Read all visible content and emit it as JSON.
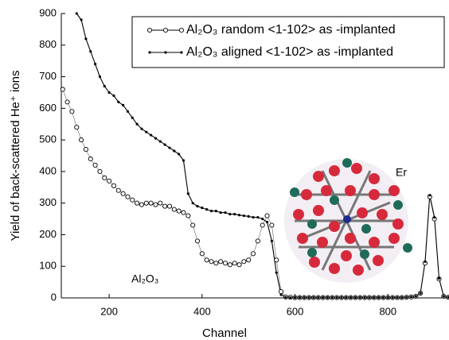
{
  "chart_data": {
    "type": "line",
    "x_label": "Channel",
    "y_label": "Yield of back-scattered He⁺ ions",
    "annotations": [
      "Al₂O₃",
      "Er"
    ],
    "x": [
      100,
      110,
      120,
      130,
      140,
      150,
      160,
      170,
      180,
      190,
      200,
      210,
      220,
      230,
      240,
      250,
      260,
      270,
      280,
      290,
      300,
      310,
      320,
      330,
      340,
      350,
      360,
      370,
      380,
      390,
      400,
      410,
      420,
      430,
      440,
      450,
      460,
      470,
      480,
      490,
      500,
      510,
      520,
      530,
      540,
      550,
      560,
      570,
      580,
      590,
      600,
      610,
      620,
      630,
      640,
      650,
      660,
      670,
      680,
      690,
      700,
      710,
      720,
      730,
      740,
      750,
      760,
      770,
      780,
      790,
      800,
      810,
      820,
      830,
      840,
      850,
      860,
      870,
      880,
      890,
      900,
      910,
      920,
      930
    ],
    "series": [
      {
        "name": "Al₂O₃ random <1-102> as -implanted",
        "color": "#000000",
        "marker": "open-circle",
        "values": [
          660,
          620,
          590,
          540,
          500,
          470,
          440,
          420,
          400,
          380,
          370,
          355,
          340,
          330,
          320,
          310,
          300,
          295,
          300,
          300,
          295,
          300,
          290,
          290,
          280,
          275,
          270,
          260,
          230,
          180,
          140,
          120,
          115,
          110,
          115,
          110,
          105,
          110,
          105,
          115,
          120,
          140,
          180,
          230,
          260,
          230,
          120,
          20,
          3,
          2,
          1,
          1,
          1,
          1,
          1,
          1,
          1,
          1,
          1,
          1,
          1,
          1,
          1,
          1,
          1,
          1,
          1,
          1,
          1,
          1,
          1,
          1,
          1,
          1,
          2,
          3,
          5,
          15,
          110,
          320,
          250,
          60,
          5,
          2
        ]
      },
      {
        "name": "Al₂O₃ aligned <1-102> as -implanted",
        "color": "#000000",
        "marker": "dot",
        "values": [
          null,
          null,
          null,
          900,
          880,
          820,
          780,
          740,
          700,
          670,
          650,
          640,
          620,
          610,
          590,
          570,
          550,
          535,
          525,
          515,
          505,
          495,
          485,
          475,
          465,
          455,
          435,
          330,
          300,
          290,
          285,
          280,
          275,
          275,
          270,
          270,
          265,
          265,
          262,
          260,
          258,
          255,
          255,
          250,
          240,
          180,
          80,
          10,
          2,
          1,
          1,
          1,
          1,
          1,
          1,
          1,
          1,
          1,
          1,
          1,
          1,
          1,
          1,
          1,
          1,
          1,
          1,
          1,
          1,
          1,
          1,
          1,
          1,
          1,
          2,
          3,
          5,
          15,
          115,
          325,
          255,
          62,
          5,
          2
        ]
      }
    ],
    "xlim": [
      97,
      928
    ],
    "xticks": [
      200,
      400,
      600,
      800
    ],
    "ylim": [
      0,
      900
    ],
    "yticks": [
      0,
      100,
      200,
      300,
      400,
      500,
      600,
      700,
      800,
      900
    ],
    "legend": "top-right"
  }
}
